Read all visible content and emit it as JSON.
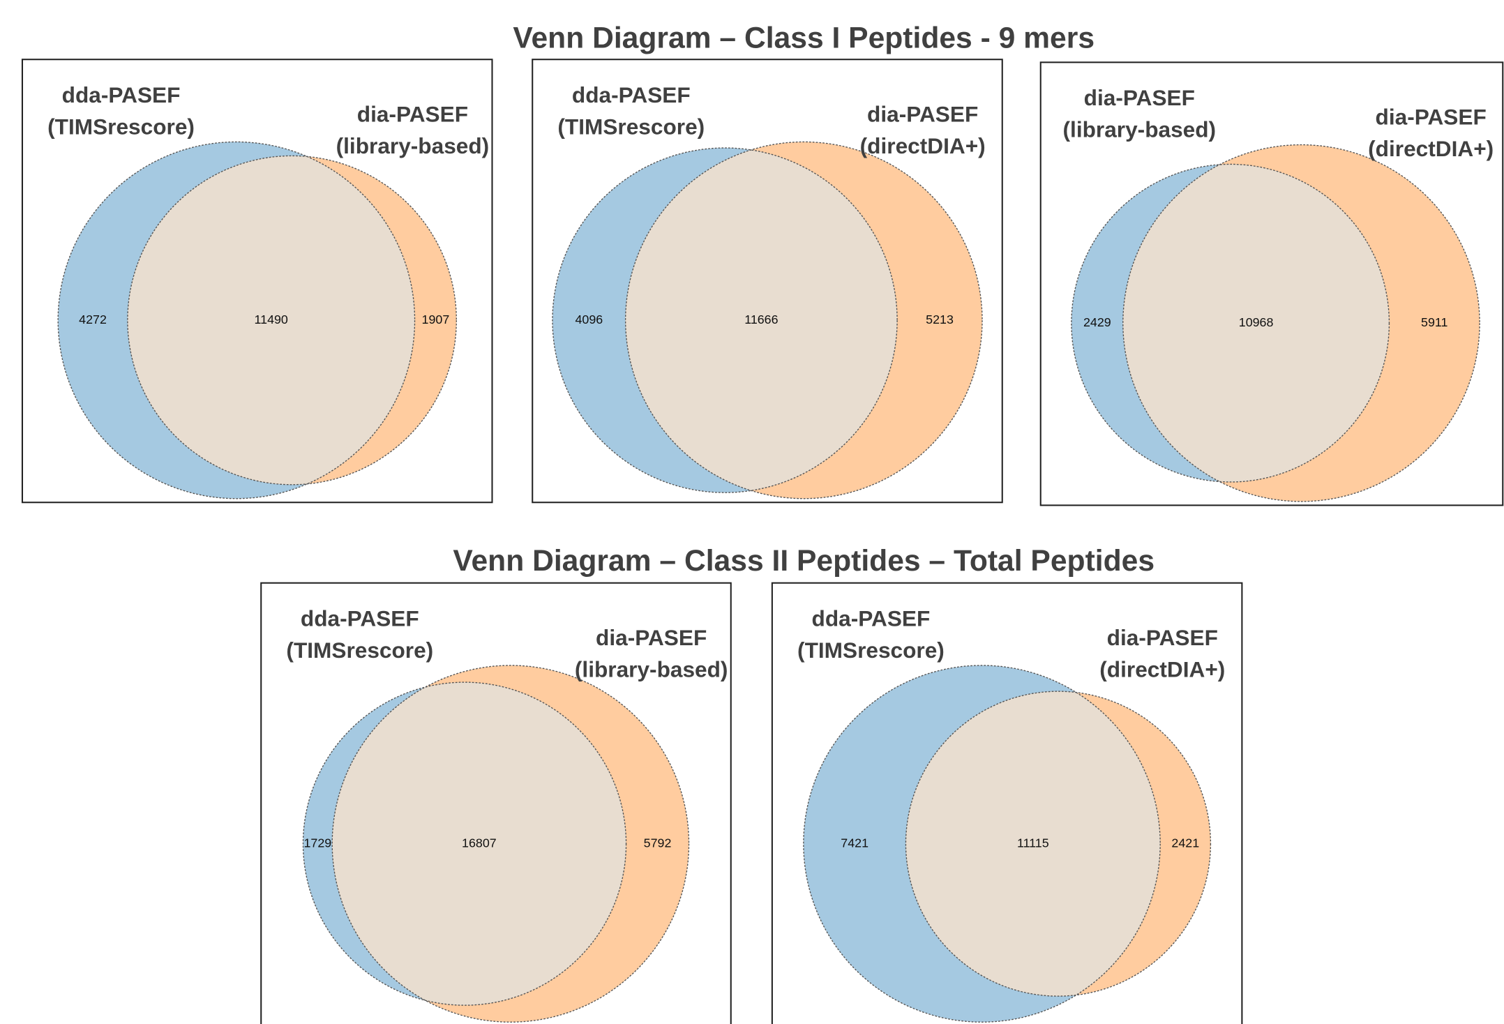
{
  "sections": [
    {
      "title": "Venn Diagram – Class I Peptides - 9 mers",
      "chart_data": [
        {
          "type": "venn",
          "sets": [
            {
              "label_lines": [
                "dda-PASEF",
                "(TIMSrescore)"
              ],
              "color": "#a5c9e1"
            },
            {
              "label_lines": [
                "dia-PASEF",
                "(library-based)"
              ],
              "color": "#ffcc9f"
            }
          ],
          "overlap_color": "#e8ddd0",
          "values": [
            4272,
            11490,
            1907
          ]
        },
        {
          "type": "venn",
          "sets": [
            {
              "label_lines": [
                "dda-PASEF",
                "(TIMSrescore)"
              ],
              "color": "#a5c9e1"
            },
            {
              "label_lines": [
                "dia-PASEF",
                "(directDIA+)"
              ],
              "color": "#ffcc9f"
            }
          ],
          "overlap_color": "#e8ddd0",
          "values": [
            4096,
            11666,
            5213
          ]
        },
        {
          "type": "venn",
          "sets": [
            {
              "label_lines": [
                "dia-PASEF",
                "(library-based)"
              ],
              "color": "#a5c9e1"
            },
            {
              "label_lines": [
                "dia-PASEF",
                "(directDIA+)"
              ],
              "color": "#ffcc9f"
            }
          ],
          "overlap_color": "#e8ddd0",
          "values": [
            2429,
            10968,
            5911
          ]
        }
      ]
    },
    {
      "title": "Venn Diagram – Class II Peptides – Total Peptides",
      "chart_data": [
        {
          "type": "venn",
          "sets": [
            {
              "label_lines": [
                "dda-PASEF",
                "(TIMSrescore)"
              ],
              "color": "#a5c9e1"
            },
            {
              "label_lines": [
                "dia-PASEF",
                "(library-based)"
              ],
              "color": "#ffcc9f"
            }
          ],
          "overlap_color": "#e8ddd0",
          "values": [
            1729,
            16807,
            5792
          ]
        },
        {
          "type": "venn",
          "sets": [
            {
              "label_lines": [
                "dda-PASEF",
                "(TIMSrescore)"
              ],
              "color": "#a5c9e1"
            },
            {
              "label_lines": [
                "dia-PASEF",
                "(directDIA+)"
              ],
              "color": "#ffcc9f"
            }
          ],
          "overlap_color": "#e8ddd0",
          "values": [
            7421,
            11115,
            2421
          ]
        }
      ]
    }
  ]
}
